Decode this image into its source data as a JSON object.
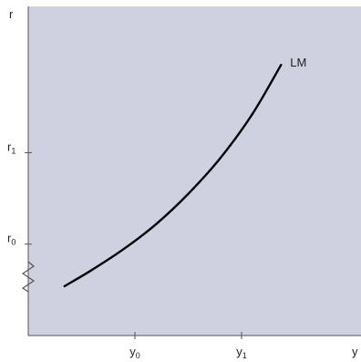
{
  "colors": {
    "plot_background": "#cfd1e0",
    "axis": "#555555",
    "curve": "#000000",
    "text": "#222222"
  },
  "chart_data": {
    "type": "line",
    "title": "",
    "xlabel": "y",
    "ylabel": "r",
    "x_ticks": [
      {
        "label": "y",
        "sub": "0",
        "x": 1
      },
      {
        "label": "y",
        "sub": "1",
        "x": 2
      }
    ],
    "y_ticks": [
      {
        "label": "r",
        "sub": "0",
        "y": 1
      },
      {
        "label": "r",
        "sub": "1",
        "y": 2
      }
    ],
    "xlim": [
      0,
      3.12
    ],
    "ylim": [
      0,
      3.6
    ],
    "axis_break_on_y": true,
    "grid": false,
    "series": [
      {
        "name": "LM",
        "x": [
          0.34,
          0.6,
          0.9,
          1.2,
          1.5,
          1.8,
          2.1,
          2.37
        ],
        "y": [
          0.54,
          0.72,
          0.95,
          1.22,
          1.55,
          1.94,
          2.42,
          2.96
        ]
      }
    ]
  }
}
